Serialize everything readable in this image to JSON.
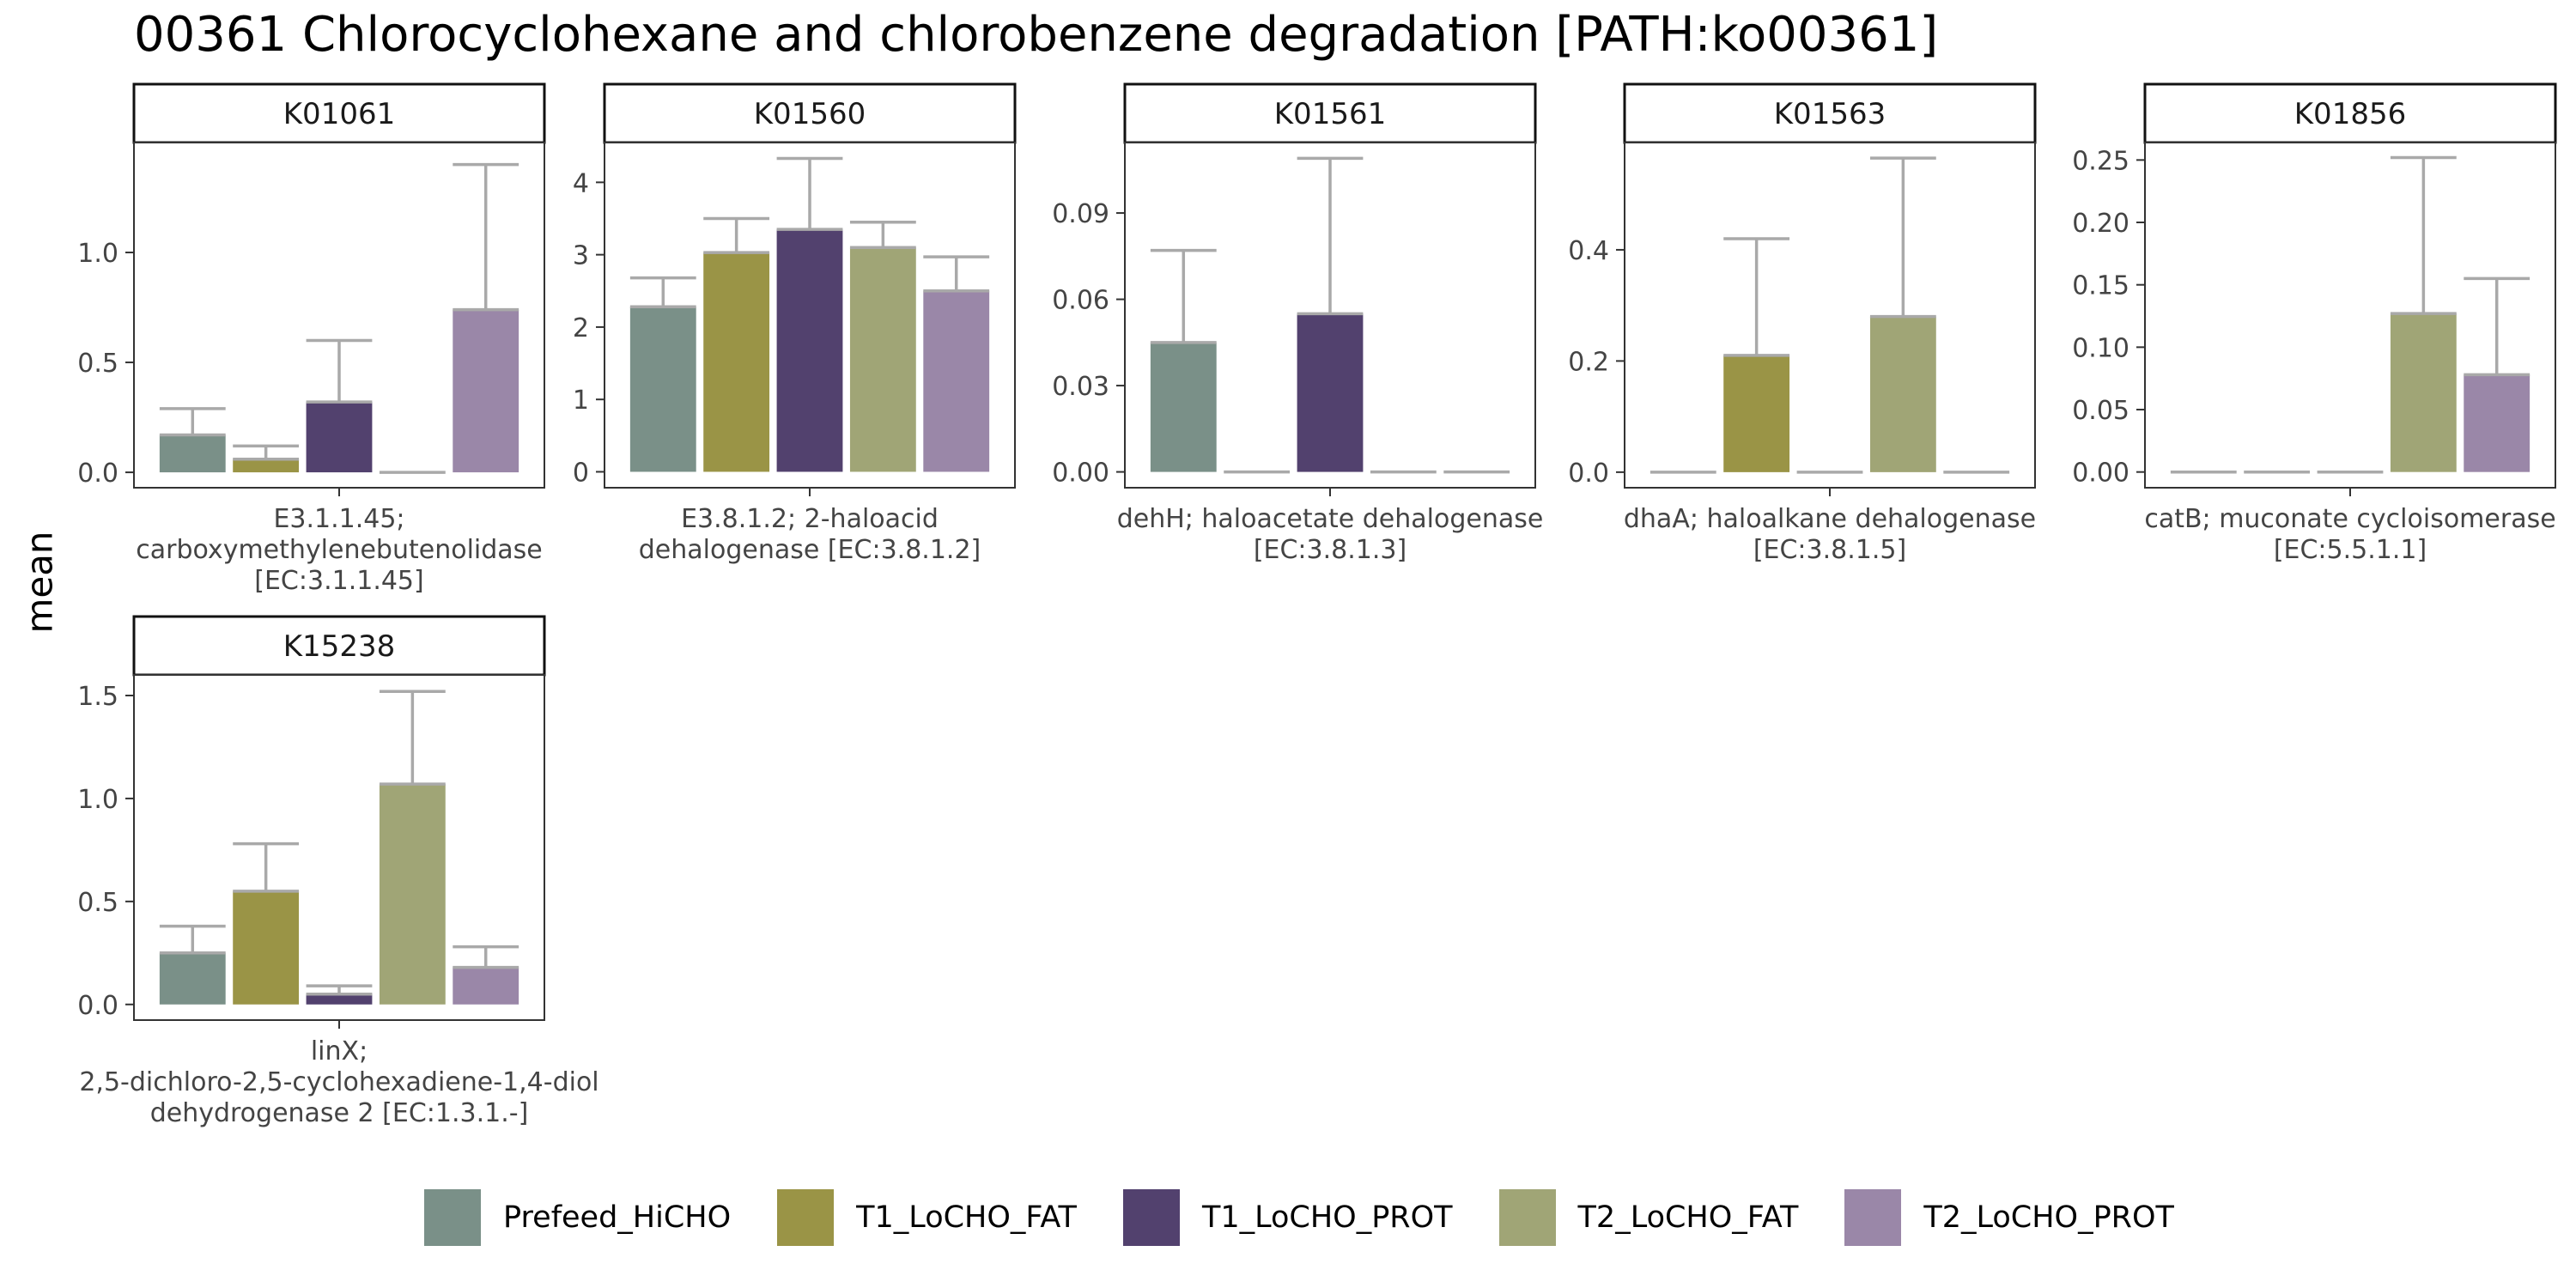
{
  "title": "00361 Chlorocyclohexane and chlorobenzene degradation [PATH:ko00361]",
  "ylabel": "mean",
  "colors": {
    "Prefeed_HiCHO": "#7a9088",
    "T1_LoCHO_FAT": "#9a9446",
    "T1_LoCHO_PROT": "#52416e",
    "T2_LoCHO_FAT": "#a0a576",
    "T2_LoCHO_PROT": "#9a87a8",
    "error_bar": "#a9a9a9",
    "strip_border": "#111111",
    "axis_text": "#444444"
  },
  "legend": {
    "entries": [
      "Prefeed_HiCHO",
      "T1_LoCHO_FAT",
      "T1_LoCHO_PROT",
      "T2_LoCHO_FAT",
      "T2_LoCHO_PROT"
    ]
  },
  "chart_data": [
    {
      "type": "bar",
      "facet": "K01061",
      "xlabel": "E3.1.1.45;\ncarboxymethylenebutenolidase\n[EC:3.1.1.45]",
      "categories": [
        "Prefeed_HiCHO",
        "T1_LoCHO_FAT",
        "T1_LoCHO_PROT",
        "T2_LoCHO_FAT",
        "T2_LoCHO_PROT"
      ],
      "values": [
        0.17,
        0.06,
        0.32,
        0.0,
        0.74
      ],
      "errors_upper": [
        0.29,
        0.12,
        0.6,
        0.0,
        1.4
      ],
      "ylim": [
        -0.07,
        1.5
      ],
      "yticks": [
        "0.0",
        "0.5",
        "1.0"
      ],
      "ytick_values": [
        0.0,
        0.5,
        1.0
      ]
    },
    {
      "type": "bar",
      "facet": "K01560",
      "xlabel": "E3.8.1.2; 2-haloacid\ndehalogenase [EC:3.8.1.2]",
      "categories": [
        "Prefeed_HiCHO",
        "T1_LoCHO_FAT",
        "T1_LoCHO_PROT",
        "T2_LoCHO_FAT",
        "T2_LoCHO_PROT"
      ],
      "values": [
        2.28,
        3.03,
        3.35,
        3.1,
        2.5
      ],
      "errors_upper": [
        2.68,
        3.5,
        4.33,
        3.45,
        2.97
      ],
      "ylim": [
        -0.22,
        4.55
      ],
      "yticks": [
        "0",
        "1",
        "2",
        "3",
        "4"
      ],
      "ytick_values": [
        0,
        1,
        2,
        3,
        4
      ]
    },
    {
      "type": "bar",
      "facet": "K01561",
      "xlabel": "dehH; haloacetate dehalogenase\n[EC:3.8.1.3]",
      "categories": [
        "Prefeed_HiCHO",
        "T1_LoCHO_FAT",
        "T1_LoCHO_PROT",
        "T2_LoCHO_FAT",
        "T2_LoCHO_PROT"
      ],
      "values": [
        0.045,
        0.0,
        0.055,
        0.0,
        0.0
      ],
      "errors_upper": [
        0.077,
        0.0,
        0.109,
        0.0,
        0.0
      ],
      "ylim": [
        -0.0055,
        0.1145
      ],
      "yticks": [
        "0.00",
        "0.03",
        "0.06",
        "0.09"
      ],
      "ytick_values": [
        0.0,
        0.03,
        0.06,
        0.09
      ]
    },
    {
      "type": "bar",
      "facet": "K01563",
      "xlabel": "dhaA; haloalkane dehalogenase\n[EC:3.8.1.5]",
      "categories": [
        "Prefeed_HiCHO",
        "T1_LoCHO_FAT",
        "T1_LoCHO_PROT",
        "T2_LoCHO_FAT",
        "T2_LoCHO_PROT"
      ],
      "values": [
        0.0,
        0.21,
        0.0,
        0.28,
        0.0
      ],
      "errors_upper": [
        0.0,
        0.42,
        0.0,
        0.565,
        0.0
      ],
      "ylim": [
        -0.028,
        0.593
      ],
      "yticks": [
        "0.0",
        "0.2",
        "0.4"
      ],
      "ytick_values": [
        0.0,
        0.2,
        0.4
      ]
    },
    {
      "type": "bar",
      "facet": "K01856",
      "xlabel": "catB; muconate cycloisomerase\n[EC:5.5.1.1]",
      "categories": [
        "Prefeed_HiCHO",
        "T1_LoCHO_FAT",
        "T1_LoCHO_PROT",
        "T2_LoCHO_FAT",
        "T2_LoCHO_PROT"
      ],
      "values": [
        0.0,
        0.0,
        0.0,
        0.127,
        0.078
      ],
      "errors_upper": [
        0.0,
        0.0,
        0.0,
        0.252,
        0.155
      ],
      "ylim": [
        -0.0126,
        0.264
      ],
      "yticks": [
        "0.00",
        "0.05",
        "0.10",
        "0.15",
        "0.20",
        "0.25"
      ],
      "ytick_values": [
        0.0,
        0.05,
        0.1,
        0.15,
        0.2,
        0.25
      ]
    },
    {
      "type": "bar",
      "facet": "K15238",
      "xlabel": "linX;\n2,5-dichloro-2,5-cyclohexadiene-1,4-diol\ndehydrogenase 2 [EC:1.3.1.-]",
      "categories": [
        "Prefeed_HiCHO",
        "T1_LoCHO_FAT",
        "T1_LoCHO_PROT",
        "T2_LoCHO_FAT",
        "T2_LoCHO_PROT"
      ],
      "values": [
        0.25,
        0.55,
        0.05,
        1.07,
        0.18
      ],
      "errors_upper": [
        0.38,
        0.78,
        0.09,
        1.52,
        0.28
      ],
      "ylim": [
        -0.076,
        1.6
      ],
      "yticks": [
        "0.0",
        "0.5",
        "1.0",
        "1.5"
      ],
      "ytick_values": [
        0.0,
        0.5,
        1.0,
        1.5
      ]
    }
  ]
}
